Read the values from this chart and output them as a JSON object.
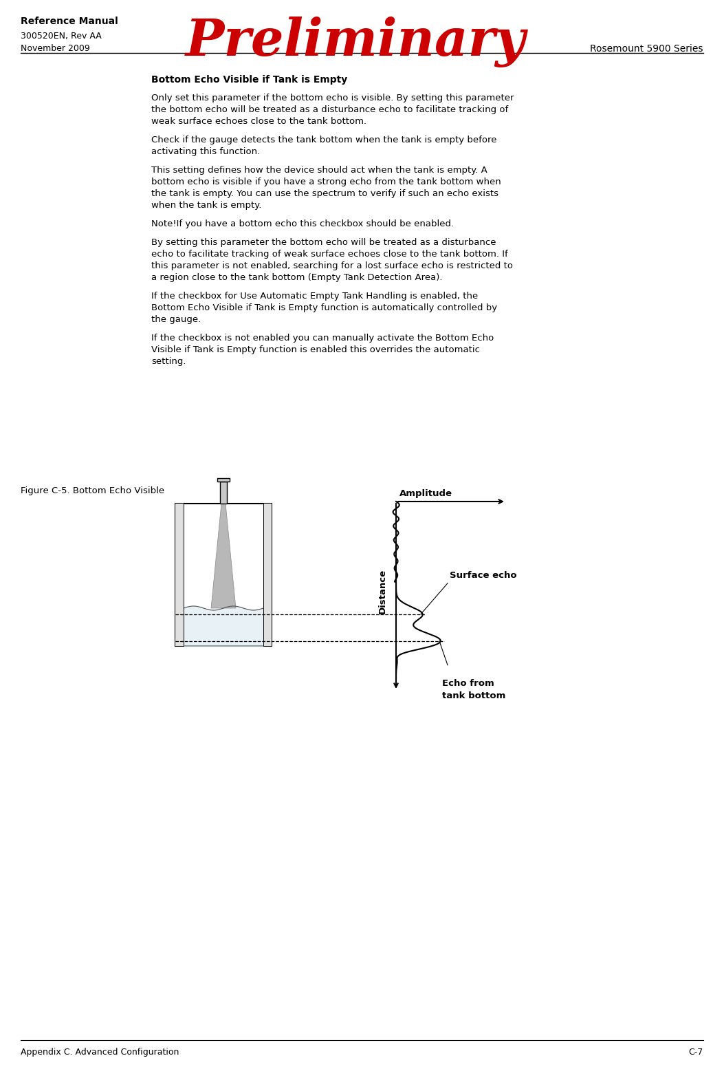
{
  "title_preliminary": "Preliminary",
  "header_left_line1": "Reference Manual",
  "header_left_line2": "300520EN, Rev AA",
  "header_left_line3": "November 2009",
  "header_right": "Rosemount 5900 Series",
  "footer_left": "Appendix C. Advanced Configuration",
  "footer_right": "C-7",
  "section_title": "Bottom Echo Visible if Tank is Empty",
  "body_paragraphs": [
    "Only set this parameter if the bottom echo is visible. By setting this parameter\nthe bottom echo will be treated as a disturbance echo to facilitate tracking of\nweak surface echoes close to the tank bottom.",
    "Check if the gauge detects the tank bottom when the tank is empty before\nactivating this function.",
    "This setting defines how the device should act when the tank is empty. A\nbottom echo is visible if you have a strong echo from the tank bottom when\nthe tank is empty. You can use the spectrum to verify if such an echo exists\nwhen the tank is empty.",
    "Note!If you have a bottom echo this checkbox should be enabled.",
    "By setting this parameter the bottom echo will be treated as a disturbance\necho to facilitate tracking of weak surface echoes close to the tank bottom. If\nthis parameter is not enabled, searching for a lost surface echo is restricted to\na region close to the tank bottom (Empty Tank Detection Area).",
    "If the checkbox for Use Automatic Empty Tank Handling is enabled, the\nBottom Echo Visible if Tank is Empty function is automatically controlled by\nthe gauge.",
    "If the checkbox is not enabled you can manually activate the Bottom Echo\nVisible if Tank is Empty function is enabled this overrides the automatic\nsetting."
  ],
  "figure_caption": "Figure C-5. Bottom Echo Visible",
  "label_amplitude": "Amplitude",
  "label_distance": "Distance",
  "label_surface_echo": "Surface echo",
  "label_echo_bottom_line1": "Echo from",
  "label_echo_bottom_line2": "tank bottom",
  "background_color": "#ffffff",
  "text_color": "#000000",
  "red_color": "#cc0000",
  "line_color": "#000000",
  "gray_fill": "#c8c8c8",
  "light_gray": "#e0e0e0"
}
